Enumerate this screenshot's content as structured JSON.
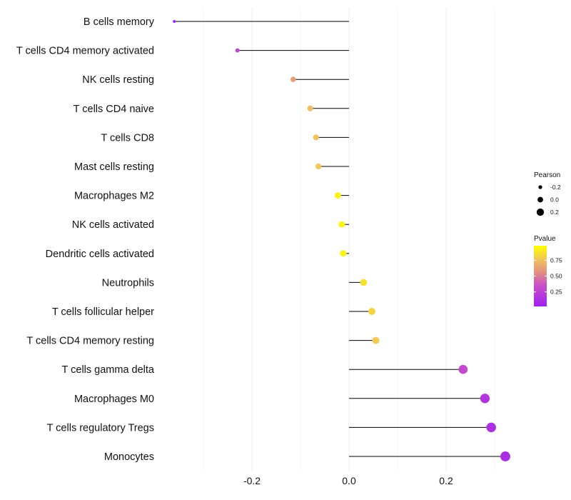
{
  "chart_data": {
    "type": "lollipop",
    "categories": [
      "B cells memory",
      "T cells CD4 memory activated",
      "NK cells resting",
      "T cells CD4 naive",
      "T cells CD8",
      "Mast cells resting",
      "Macrophages M2",
      "NK cells activated",
      "Dendritic cells activated",
      "Neutrophils",
      "T cells follicular helper",
      "T cells CD4 memory resting",
      "T cells gamma delta",
      "Macrophages M0",
      "T cells regulatory  Tregs",
      "Monocytes"
    ],
    "pearson": [
      -0.36,
      -0.23,
      -0.115,
      -0.08,
      -0.068,
      -0.063,
      -0.023,
      -0.015,
      -0.012,
      0.03,
      0.047,
      0.055,
      0.235,
      0.28,
      0.293,
      0.322
    ],
    "pvalue": [
      0.02,
      0.28,
      0.62,
      0.75,
      0.77,
      0.78,
      0.95,
      0.95,
      0.96,
      0.88,
      0.83,
      0.8,
      0.3,
      0.15,
      0.12,
      0.1
    ],
    "xlim": [
      -0.39,
      0.36
    ],
    "xticks": [
      -0.2,
      0.0,
      0.2
    ],
    "xtick_labels": [
      "-0.2",
      "0.0",
      "0.2"
    ],
    "xlabel": "",
    "ylabel": "",
    "legend": {
      "size_title": "Pearson",
      "size_entries": [
        "-0.2",
        "0.0",
        "0.2"
      ],
      "color_title": "Pvalue",
      "color_entries": [
        "0.75",
        "0.50",
        "0.25"
      ],
      "color_low": "#a020f0",
      "color_high": "#ffff00",
      "position": "right"
    }
  }
}
